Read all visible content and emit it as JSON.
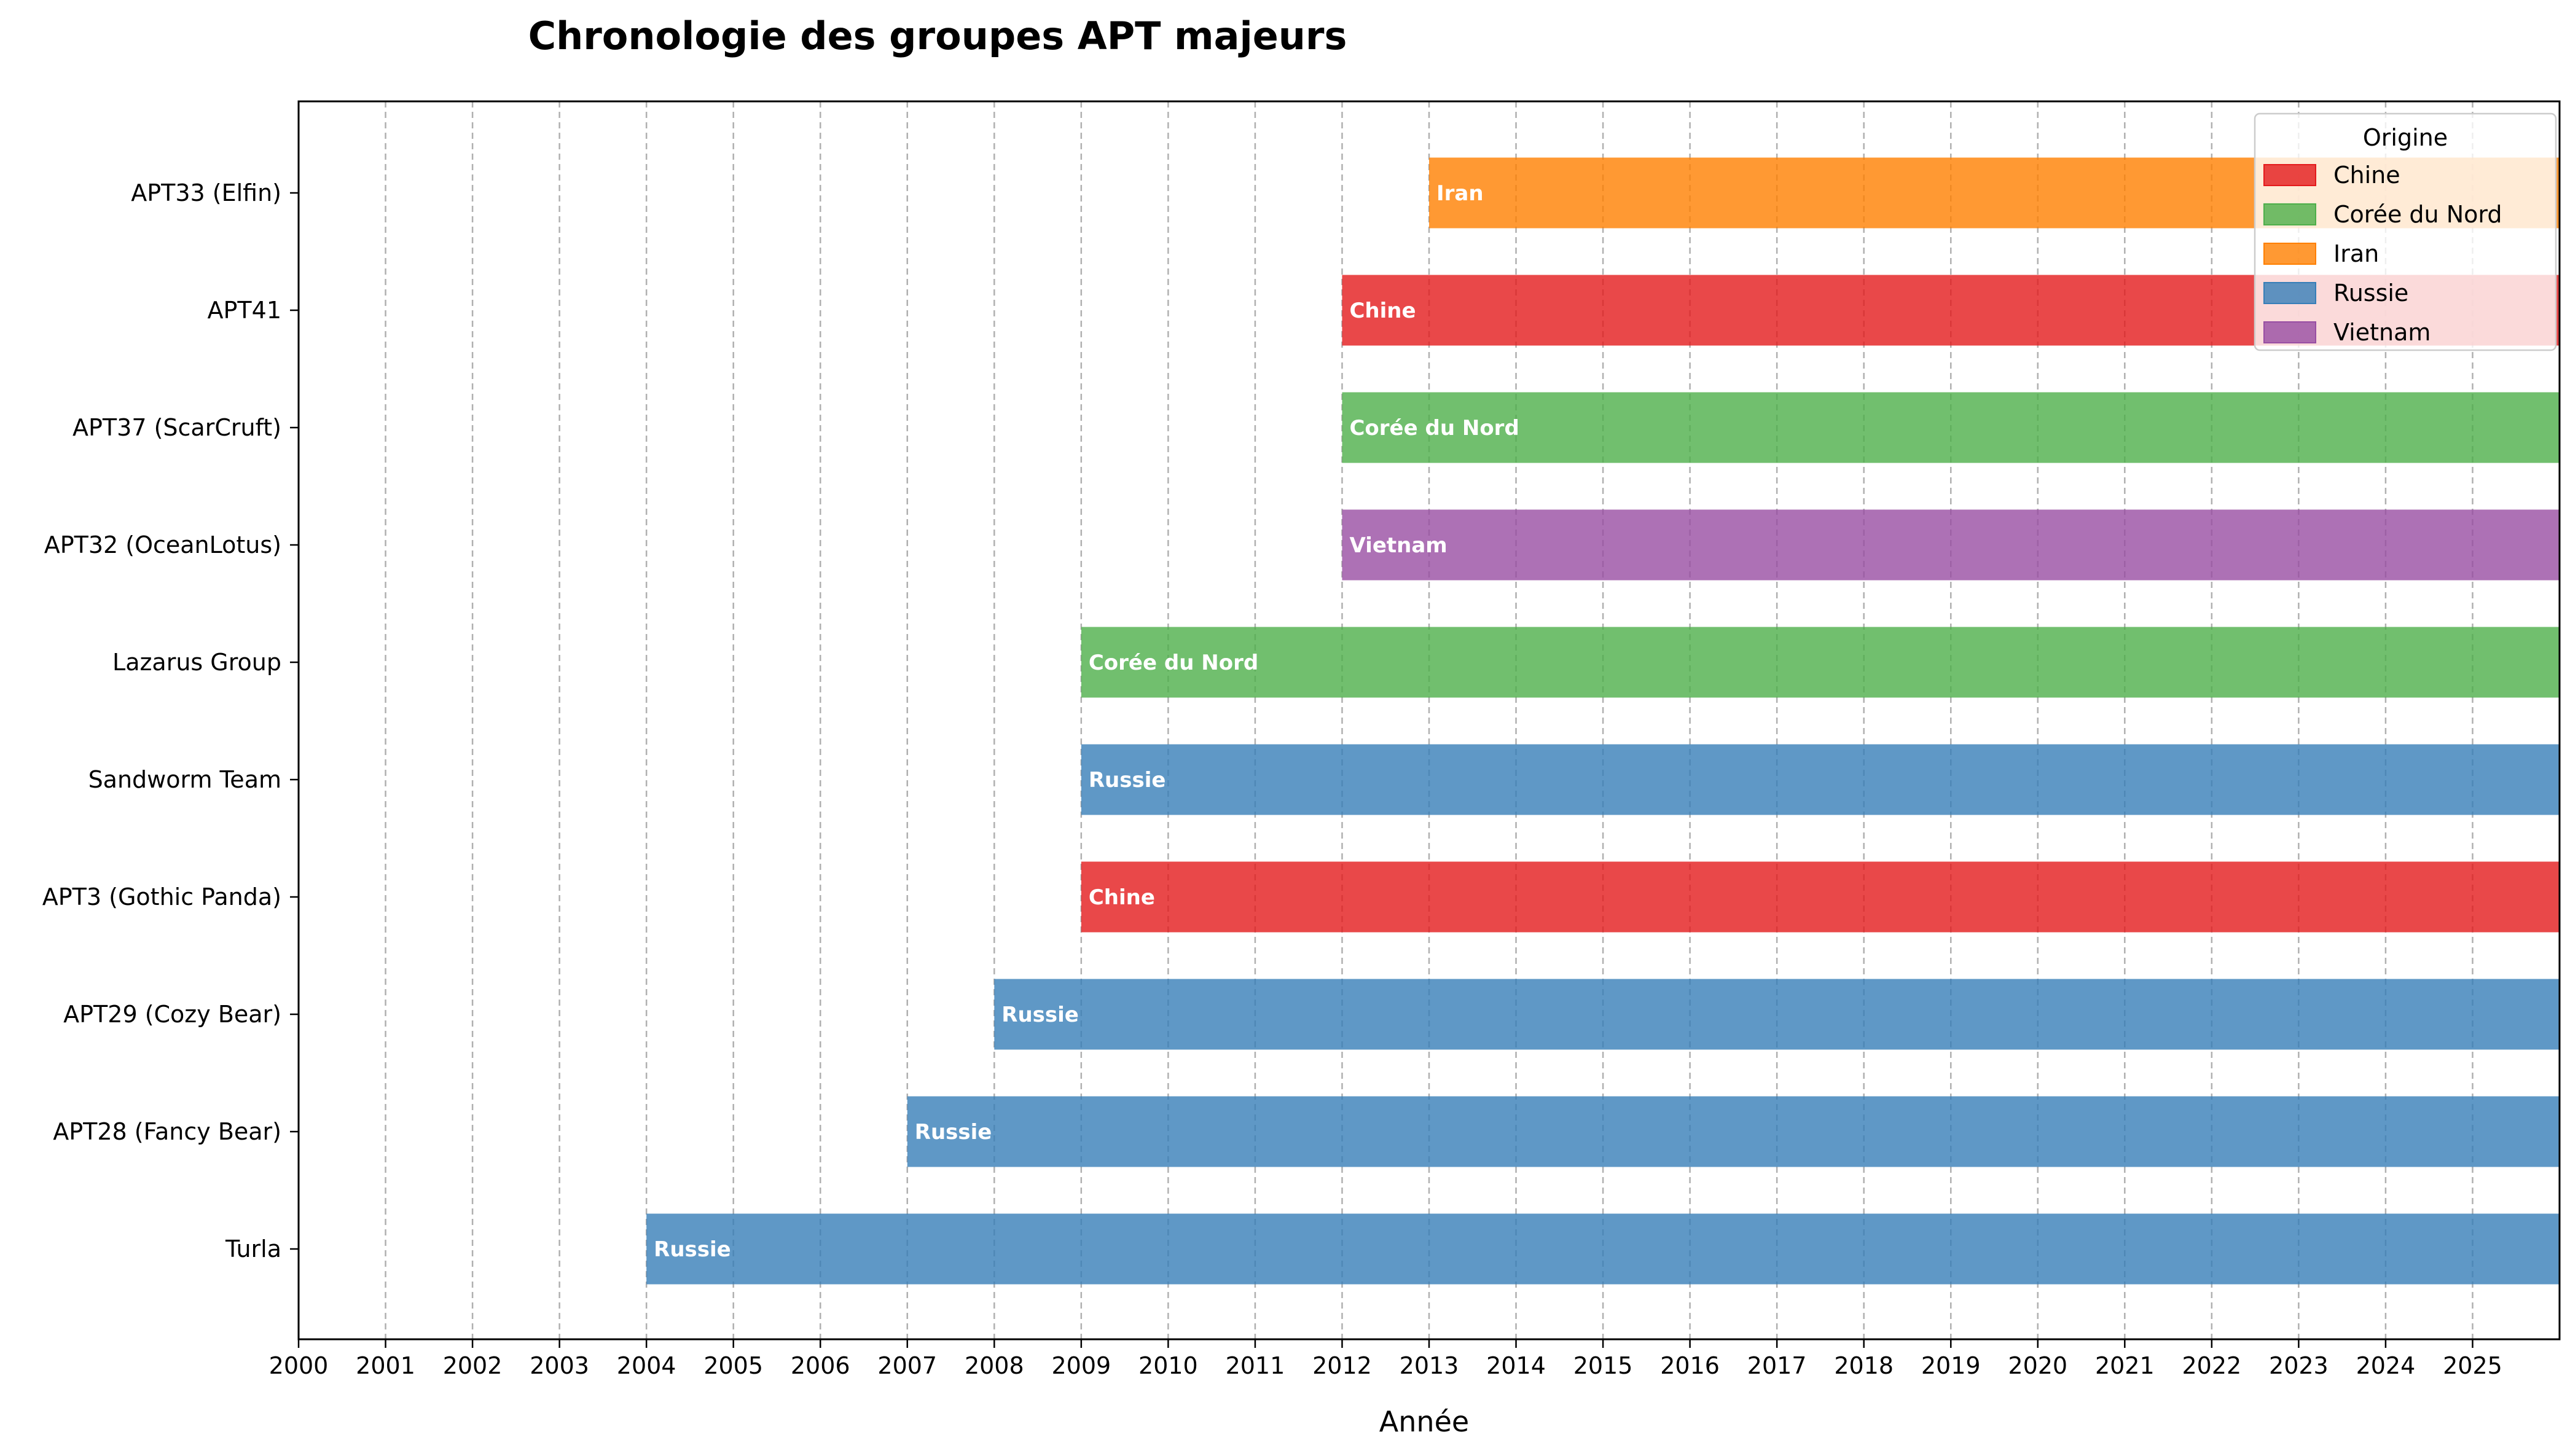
{
  "chart_data": {
    "type": "bar",
    "orientation": "horizontal",
    "title": "Chronologie des groupes APT majeurs",
    "xlabel": "Année",
    "ylabel": "",
    "xlim": [
      2000,
      2026
    ],
    "x_ticks": [
      "2000",
      "2001",
      "2002",
      "2003",
      "2004",
      "2005",
      "2006",
      "2007",
      "2008",
      "2009",
      "2010",
      "2011",
      "2012",
      "2013",
      "2014",
      "2015",
      "2016",
      "2017",
      "2018",
      "2019",
      "2020",
      "2021",
      "2022",
      "2023",
      "2024",
      "2025"
    ],
    "grid": "vertical dashed",
    "legend": {
      "title": "Origine",
      "placement": "top-right",
      "entries": [
        {
          "name": "Chine",
          "color": "#e41a1c"
        },
        {
          "name": "Corée du Nord",
          "color": "#4daf4a"
        },
        {
          "name": "Iran",
          "color": "#ff7f00"
        },
        {
          "name": "Russie",
          "color": "#377eb8"
        },
        {
          "name": "Vietnam",
          "color": "#984ea3"
        }
      ]
    },
    "groups": [
      {
        "name": "Turla",
        "start": 2004,
        "end": 2026,
        "origin": "Russie"
      },
      {
        "name": "APT28 (Fancy Bear)",
        "start": 2007,
        "end": 2026,
        "origin": "Russie"
      },
      {
        "name": "APT29 (Cozy Bear)",
        "start": 2008,
        "end": 2026,
        "origin": "Russie"
      },
      {
        "name": "APT3 (Gothic Panda)",
        "start": 2009,
        "end": 2026,
        "origin": "Chine"
      },
      {
        "name": "Sandworm Team",
        "start": 2009,
        "end": 2026,
        "origin": "Russie"
      },
      {
        "name": "Lazarus Group",
        "start": 2009,
        "end": 2026,
        "origin": "Corée du Nord"
      },
      {
        "name": "APT32 (OceanLotus)",
        "start": 2012,
        "end": 2026,
        "origin": "Vietnam"
      },
      {
        "name": "APT37 (ScarCruft)",
        "start": 2012,
        "end": 2026,
        "origin": "Corée du Nord"
      },
      {
        "name": "APT41",
        "start": 2012,
        "end": 2026,
        "origin": "Chine"
      },
      {
        "name": "APT33 (Elfin)",
        "start": 2013,
        "end": 2026,
        "origin": "Iran"
      }
    ]
  }
}
